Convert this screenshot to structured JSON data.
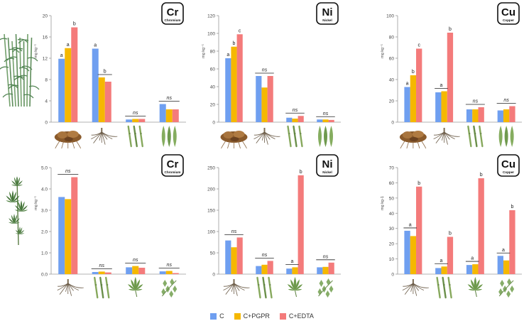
{
  "legend": {
    "c": "C",
    "pgpr": "C+PGPR",
    "edta": "C+EDTA"
  },
  "colors": {
    "c": "#6f9ff0",
    "pgpr": "#f5b800",
    "edta": "#f47b7b",
    "axis": "#9a9a9a",
    "text": "#444444"
  },
  "chart_data": [
    {
      "type": "bar",
      "element_symbol": "Cr",
      "element_name": "Chromium",
      "plant": "sugarcane",
      "ylabel": "mg kg⁻¹",
      "ylim": [
        0,
        20
      ],
      "yticks": [
        "0",
        "4",
        "8",
        "12",
        "16",
        "20"
      ],
      "categories": [
        "rhizosphere soil",
        "root",
        "stem",
        "leaf"
      ],
      "category_icons": [
        "soil-clump-icon",
        "root-icon",
        "stem-icon",
        "leaf-icon"
      ],
      "series": [
        {
          "name": "C",
          "values": [
            11.9,
            13.8,
            0.5,
            3.4
          ]
        },
        {
          "name": "C+PGPR",
          "values": [
            13.9,
            8.4,
            0.6,
            2.4
          ]
        },
        {
          "name": "C+EDTA",
          "values": [
            17.8,
            7.6,
            0.6,
            2.4
          ]
        }
      ],
      "annotations": [
        {
          "category": 0,
          "letters": [
            "a",
            "a",
            "b"
          ]
        },
        {
          "category": 1,
          "letters": [
            "a",
            "",
            ""
          ],
          "group_label": "b",
          "group_span": [
            1,
            2
          ]
        },
        {
          "category": 2,
          "group_label": "ns",
          "group_span": [
            0,
            2
          ]
        },
        {
          "category": 3,
          "group_label": "ns",
          "group_span": [
            0,
            2
          ]
        }
      ]
    },
    {
      "type": "bar",
      "element_symbol": "Ni",
      "element_name": "Nickel",
      "plant": "sugarcane",
      "ylabel": "mg kg⁻¹",
      "ylim": [
        0,
        120
      ],
      "yticks": [
        "0",
        "20",
        "40",
        "60",
        "80",
        "100",
        "120"
      ],
      "categories": [
        "rhizosphere soil",
        "root",
        "stem",
        "leaf"
      ],
      "category_icons": [
        "soil-clump-icon",
        "root-icon",
        "stem-icon",
        "leaf-icon"
      ],
      "series": [
        {
          "name": "C",
          "values": [
            72,
            52,
            5,
            3
          ]
        },
        {
          "name": "C+PGPR",
          "values": [
            85,
            39,
            4,
            3
          ]
        },
        {
          "name": "C+EDTA",
          "values": [
            99,
            52,
            7,
            2.5
          ]
        }
      ],
      "annotations": [
        {
          "category": 0,
          "letters": [
            "a",
            "b",
            "c"
          ]
        },
        {
          "category": 1,
          "group_label": "ns",
          "group_span": [
            0,
            2
          ]
        },
        {
          "category": 2,
          "group_label": "ns",
          "group_span": [
            0,
            2
          ]
        },
        {
          "category": 3,
          "group_label": "ns",
          "group_span": [
            0,
            2
          ]
        }
      ]
    },
    {
      "type": "bar",
      "element_symbol": "Cu",
      "element_name": "Copper",
      "plant": "sugarcane",
      "ylabel": "mg kg⁻¹",
      "ylim": [
        0,
        100
      ],
      "yticks": [
        "0",
        "20",
        "40",
        "60",
        "80",
        "100"
      ],
      "categories": [
        "rhizosphere soil",
        "root",
        "stem",
        "leaf"
      ],
      "category_icons": [
        "soil-clump-icon",
        "root-icon",
        "stem-icon",
        "leaf-icon"
      ],
      "series": [
        {
          "name": "C",
          "values": [
            33,
            28,
            12,
            11
          ]
        },
        {
          "name": "C+PGPR",
          "values": [
            44,
            29,
            12,
            12
          ]
        },
        {
          "name": "C+EDTA",
          "values": [
            69,
            84,
            14,
            15
          ]
        }
      ],
      "annotations": [
        {
          "category": 0,
          "letters": [
            "a",
            "b",
            "c"
          ]
        },
        {
          "category": 1,
          "group_label": "a",
          "group_span": [
            0,
            1
          ],
          "letters": [
            "",
            "",
            "b"
          ]
        },
        {
          "category": 2,
          "group_label": "ns",
          "group_span": [
            0,
            2
          ]
        },
        {
          "category": 3,
          "group_label": "ns",
          "group_span": [
            0,
            2
          ]
        }
      ]
    },
    {
      "type": "bar",
      "element_symbol": "Cr",
      "element_name": "Chromium",
      "plant": "hemp",
      "ylabel": "mg kg⁻¹",
      "ylim": [
        0,
        5
      ],
      "yticks": [
        "0.0",
        "1.0",
        "2.0",
        "3.0",
        "4.0",
        "5.0"
      ],
      "categories": [
        "root",
        "stem",
        "leaf",
        "inflorescence"
      ],
      "category_icons": [
        "root-icon",
        "stem-icon",
        "cannabis-leaf-icon",
        "inflorescence-icon"
      ],
      "series": [
        {
          "name": "C",
          "values": [
            3.62,
            0.1,
            0.32,
            0.13
          ]
        },
        {
          "name": "C+PGPR",
          "values": [
            3.52,
            0.12,
            0.38,
            0.15
          ]
        },
        {
          "name": "C+EDTA",
          "values": [
            4.55,
            0.08,
            0.3,
            0.05
          ]
        }
      ],
      "annotations": [
        {
          "category": 0,
          "group_label": "ns",
          "group_span": [
            0,
            2
          ]
        },
        {
          "category": 1,
          "group_label": "ns",
          "group_span": [
            0,
            2
          ]
        },
        {
          "category": 2,
          "group_label": "ns",
          "group_span": [
            0,
            2
          ]
        },
        {
          "category": 3,
          "group_label": "ns",
          "group_span": [
            0,
            2
          ]
        }
      ]
    },
    {
      "type": "bar",
      "element_symbol": "Ni",
      "element_name": "Nickel",
      "plant": "hemp",
      "ylabel": "",
      "ylim": [
        0,
        250
      ],
      "yticks": [
        "0",
        "50",
        "100",
        "150",
        "200",
        "250"
      ],
      "categories": [
        "root",
        "stem",
        "leaf",
        "inflorescence"
      ],
      "category_icons": [
        "root-icon",
        "stem-icon",
        "cannabis-leaf-icon",
        "inflorescence-icon"
      ],
      "series": [
        {
          "name": "C",
          "values": [
            79,
            19,
            13,
            16
          ]
        },
        {
          "name": "C+PGPR",
          "values": [
            63,
            22,
            16,
            17
          ]
        },
        {
          "name": "C+EDTA",
          "values": [
            86,
            31,
            232,
            27
          ]
        }
      ],
      "annotations": [
        {
          "category": 0,
          "group_label": "ns",
          "group_span": [
            0,
            2
          ]
        },
        {
          "category": 1,
          "group_label": "ns",
          "group_span": [
            0,
            2
          ]
        },
        {
          "category": 2,
          "group_label": "a",
          "group_span": [
            0,
            1
          ],
          "letters": [
            "",
            "",
            "b"
          ]
        },
        {
          "category": 3,
          "group_label": "ns",
          "group_span": [
            0,
            2
          ]
        }
      ]
    },
    {
      "type": "bar",
      "element_symbol": "Cu",
      "element_name": "Copper",
      "plant": "hemp",
      "ylabel": "mg kg-1",
      "ylim": [
        0,
        70
      ],
      "yticks": [
        "0",
        "10",
        "20",
        "30",
        "40",
        "50",
        "60",
        "70"
      ],
      "categories": [
        "root",
        "stem",
        "leaf",
        "inflorescence"
      ],
      "category_icons": [
        "root-icon",
        "stem-icon",
        "cannabis-leaf-icon",
        "inflorescence-icon"
      ],
      "series": [
        {
          "name": "C",
          "values": [
            28.5,
            4,
            6,
            12
          ]
        },
        {
          "name": "C+PGPR",
          "values": [
            25,
            5,
            6.5,
            9
          ]
        },
        {
          "name": "C+EDTA",
          "values": [
            57.5,
            24.5,
            63,
            42
          ]
        }
      ],
      "annotations": [
        {
          "category": 0,
          "group_label": "a",
          "group_span": [
            0,
            1
          ],
          "letters": [
            "",
            "",
            "b"
          ]
        },
        {
          "category": 1,
          "group_label": "a",
          "group_span": [
            0,
            1
          ],
          "letters": [
            "",
            "",
            "b"
          ]
        },
        {
          "category": 2,
          "group_label": "a",
          "group_span": [
            0,
            1
          ],
          "letters": [
            "",
            "",
            "b"
          ]
        },
        {
          "category": 3,
          "group_label": "a",
          "group_span": [
            0,
            1
          ],
          "letters": [
            "",
            "",
            "b"
          ]
        }
      ]
    }
  ]
}
